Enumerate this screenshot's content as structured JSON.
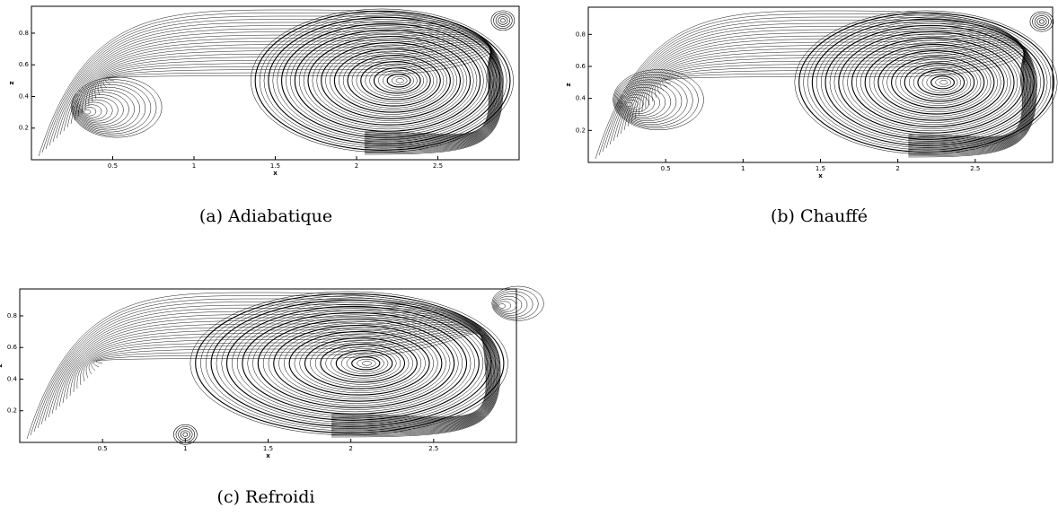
{
  "chart_data": [
    {
      "type": "streamline",
      "caption": "(a) Adiabatique",
      "x_label": "x",
      "y_label": "z",
      "xlim": [
        0,
        3
      ],
      "ylim": [
        0,
        0.97
      ],
      "xticks": [
        0.5,
        1,
        1.5,
        2,
        2.5
      ],
      "yticks": [
        0.2,
        0.4,
        0.6,
        0.8
      ]
    },
    {
      "type": "streamline",
      "caption": "(b) Chauffé",
      "x_label": "x",
      "y_label": "z",
      "xlim": [
        0,
        3
      ],
      "ylim": [
        0,
        0.97
      ],
      "xticks": [
        0.5,
        1,
        1.5,
        2,
        2.5
      ],
      "yticks": [
        0.2,
        0.4,
        0.6,
        0.8
      ]
    },
    {
      "type": "streamline",
      "caption": "(c) Refroidi",
      "x_label": "x",
      "y_label": "z",
      "xlim": [
        0,
        3
      ],
      "ylim": [
        0,
        0.97
      ],
      "xticks": [
        0.5,
        1,
        1.5,
        2,
        2.5
      ],
      "yticks": [
        0.2,
        0.4,
        0.6,
        0.8
      ]
    }
  ]
}
